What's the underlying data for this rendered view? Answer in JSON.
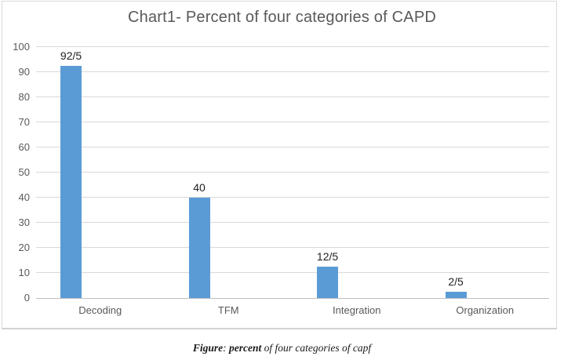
{
  "chart_data": {
    "type": "bar",
    "title": "Chart1- Percent of four categories of CAPD",
    "categories": [
      "Decoding",
      "TFM",
      "Integration",
      "Organization"
    ],
    "values": [
      92.5,
      40,
      12.5,
      2.5
    ],
    "data_labels": [
      "92/5",
      "40",
      "12/5",
      "2/5"
    ],
    "yticks": [
      0,
      10,
      20,
      30,
      40,
      50,
      60,
      70,
      80,
      90,
      100
    ],
    "ylim": [
      0,
      100
    ],
    "xlabel": "",
    "ylabel": "",
    "grid": "horizontal",
    "legend": "none",
    "bar_color": "#5b9bd5"
  },
  "colors": {
    "bar": "#5b9bd5",
    "text_gray": "#595959",
    "gridline": "#d9d9d9",
    "axis_line": "#bfbfbf",
    "data_label": "#1f1f1f",
    "frame_border": "#d9d9d9"
  },
  "caption": {
    "figure_label": "Figure",
    "separator": ": ",
    "bold_word": "percent",
    "rest_text": " of four categories of capf"
  }
}
